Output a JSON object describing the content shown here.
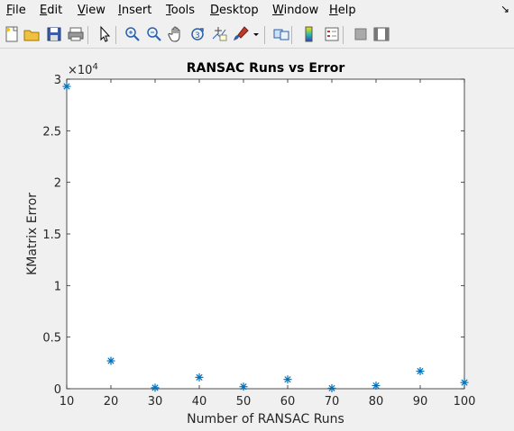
{
  "menubar": {
    "items": [
      {
        "key": "F",
        "rest": "ile"
      },
      {
        "key": "E",
        "rest": "dit"
      },
      {
        "key": "V",
        "rest": "iew"
      },
      {
        "key": "I",
        "rest": "nsert"
      },
      {
        "key": "T",
        "rest": "ools"
      },
      {
        "key": "D",
        "rest": "esktop"
      },
      {
        "key": "W",
        "rest": "indow"
      },
      {
        "key": "H",
        "rest": "elp"
      }
    ]
  },
  "toolbar": {
    "icons": [
      "new-figure-icon",
      "open-file-icon",
      "save-icon",
      "print-icon",
      "pointer-icon",
      "zoom-in-icon",
      "zoom-out-icon",
      "pan-hand-icon",
      "rotate-3d-icon",
      "data-cursor-icon",
      "brush-icon",
      "link-plot-icon",
      "colorbar-icon",
      "legend-icon",
      "hide-plot-tools-icon",
      "show-plot-tools-icon"
    ]
  },
  "chart_data": {
    "type": "scatter",
    "title": "RANSAC Runs vs Error",
    "xlabel": "Number of RANSAC Runs",
    "ylabel": "KMatrix Error",
    "exponent_label": "×10",
    "exponent_power": "4",
    "xlim": [
      10,
      100
    ],
    "ylim": [
      0,
      30000
    ],
    "xticks": [
      10,
      20,
      30,
      40,
      50,
      60,
      70,
      80,
      90,
      100
    ],
    "yticks": [
      0,
      5000,
      10000,
      15000,
      20000,
      25000,
      30000
    ],
    "ytick_labels": [
      "0",
      "0.5",
      "1",
      "1.5",
      "2",
      "2.5",
      "3"
    ],
    "marker": "*",
    "marker_color": "#0072bd",
    "grid": false,
    "x": [
      10,
      20,
      30,
      40,
      50,
      60,
      70,
      80,
      90,
      100
    ],
    "y": [
      29300,
      2700,
      100,
      1100,
      200,
      900,
      50,
      300,
      1700,
      600
    ]
  }
}
